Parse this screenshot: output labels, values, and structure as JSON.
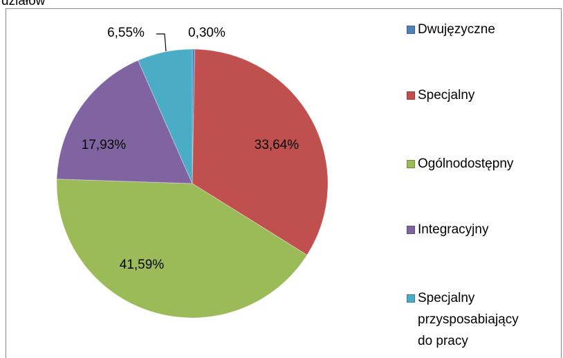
{
  "chart_data": {
    "type": "pie",
    "caption": "działów",
    "categories": [
      "Dwujęzyczne",
      "Specjalny",
      "Ogólnodostępny",
      "Integracyjny",
      "Specjalny przysposabiający do pracy"
    ],
    "values": [
      0.3,
      33.64,
      41.59,
      17.93,
      6.55
    ],
    "value_labels": [
      "0,30%",
      "33,64%",
      "41,59%",
      "17,93%",
      "6,55%"
    ],
    "colors": [
      "#4f81bd",
      "#c0504d",
      "#9bbb59",
      "#8064a2",
      "#4bacc6"
    ],
    "legend": "right"
  }
}
